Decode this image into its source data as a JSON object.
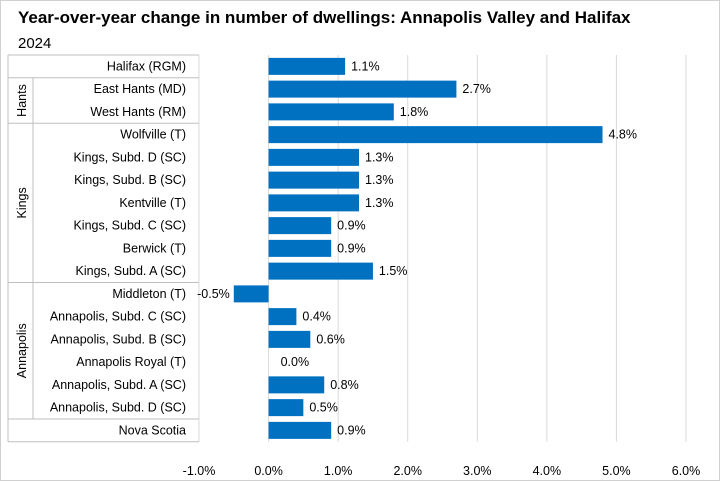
{
  "chart_data": {
    "type": "bar",
    "orientation": "horizontal",
    "title": "Year-over-year change in number of dwellings: Annapolis Valley and Halifax",
    "subtitle": "2024",
    "xlim": [
      -1.0,
      6.0
    ],
    "x_ticks": [
      -1.0,
      0.0,
      1.0,
      2.0,
      3.0,
      4.0,
      5.0,
      6.0
    ],
    "x_tick_labels": [
      "-1.0%",
      "0.0%",
      "1.0%",
      "2.0%",
      "3.0%",
      "4.0%",
      "5.0%",
      "6.0%"
    ],
    "grid": true,
    "bar_color": "#0070C0",
    "categories": [
      "Halifax (RGM)",
      "East Hants (MD)",
      "West Hants (RM)",
      "Wolfville (T)",
      "Kings, Subd. D (SC)",
      "Kings, Subd. B (SC)",
      "Kentville (T)",
      "Kings, Subd. C (SC)",
      "Berwick (T)",
      "Kings, Subd. A (SC)",
      "Middleton (T)",
      "Annapolis, Subd. C (SC)",
      "Annapolis, Subd. B (SC)",
      "Annapolis Royal (T)",
      "Annapolis, Subd. A (SC)",
      "Annapolis, Subd. D (SC)",
      "Nova Scotia"
    ],
    "values": [
      1.1,
      2.7,
      1.8,
      4.8,
      1.3,
      1.3,
      1.3,
      0.9,
      0.9,
      1.5,
      -0.5,
      0.4,
      0.6,
      0.0,
      0.8,
      0.5,
      0.9
    ],
    "value_labels": [
      "1.1%",
      "2.7%",
      "1.8%",
      "4.8%",
      "1.3%",
      "1.3%",
      "1.3%",
      "0.9%",
      "0.9%",
      "1.5%",
      "-0.5%",
      "0.4%",
      "0.6%",
      "0.0%",
      "0.8%",
      "0.5%",
      "0.9%"
    ],
    "groups": [
      {
        "name": "",
        "start": 0,
        "end": 0
      },
      {
        "name": "Hants",
        "start": 1,
        "end": 2
      },
      {
        "name": "Kings",
        "start": 3,
        "end": 9
      },
      {
        "name": "Annapolis",
        "start": 10,
        "end": 15
      },
      {
        "name": "",
        "start": 16,
        "end": 16
      }
    ]
  }
}
